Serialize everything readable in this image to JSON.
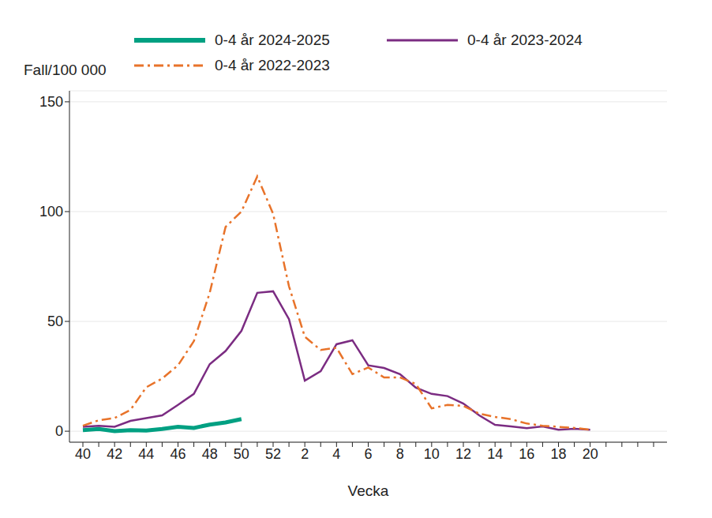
{
  "chart_data": {
    "type": "line",
    "x_label": "Vecka",
    "y_label": "Fall/100 000",
    "categories": [
      "40",
      null,
      "42",
      null,
      "44",
      null,
      "46",
      null,
      "48",
      null,
      "50",
      null,
      "52",
      null,
      "2",
      null,
      "4",
      null,
      "6",
      null,
      "8",
      null,
      "10",
      null,
      "12",
      null,
      "14",
      null,
      "16",
      null,
      "18",
      null,
      "20",
      null,
      null,
      null,
      null
    ],
    "series": [
      {
        "name": "0-4 år 2024-2025",
        "color": "#00a082",
        "line_style": "solid",
        "values": [
          0.5,
          1,
          0,
          0.5,
          0.3,
          1,
          2,
          1.5,
          3,
          4,
          5.5,
          null,
          null,
          null,
          null,
          null,
          null,
          null,
          null,
          null,
          null,
          null,
          null,
          null,
          null,
          null,
          null,
          null,
          null,
          null,
          null,
          null,
          null,
          null,
          null,
          null,
          null
        ]
      },
      {
        "name": "0-4 år 2023-2024",
        "color": "#7b2c82",
        "line_style": "solid",
        "values": [
          2,
          2.5,
          2,
          4.7,
          6,
          7.2,
          12,
          17,
          30.5,
          36.5,
          45.7,
          63,
          63.7,
          51,
          23,
          27.3,
          39.6,
          41.4,
          30,
          28.8,
          26,
          19.8,
          17,
          16,
          12.6,
          7.2,
          2.9,
          2.2,
          1.4,
          2.2,
          0.7,
          1.1,
          0.7,
          null,
          null,
          null,
          null
        ]
      },
      {
        "name": "0-4 år 2022-2023",
        "color": "#e8732a",
        "line_style": "dashdot",
        "values": [
          2.5,
          5,
          6,
          9.7,
          20,
          24,
          30,
          41,
          63,
          93,
          100,
          116,
          99,
          66,
          43,
          37,
          38,
          26,
          29,
          24.5,
          24.5,
          21.5,
          10.4,
          12,
          11.5,
          8,
          6.5,
          5.5,
          3.5,
          2.5,
          2,
          1.5,
          0.7,
          null,
          null,
          null,
          null
        ]
      }
    ],
    "ylim": [
      -5,
      155
    ],
    "yticks": [
      0,
      50,
      100,
      150
    ],
    "grid": true,
    "legend": "top"
  }
}
